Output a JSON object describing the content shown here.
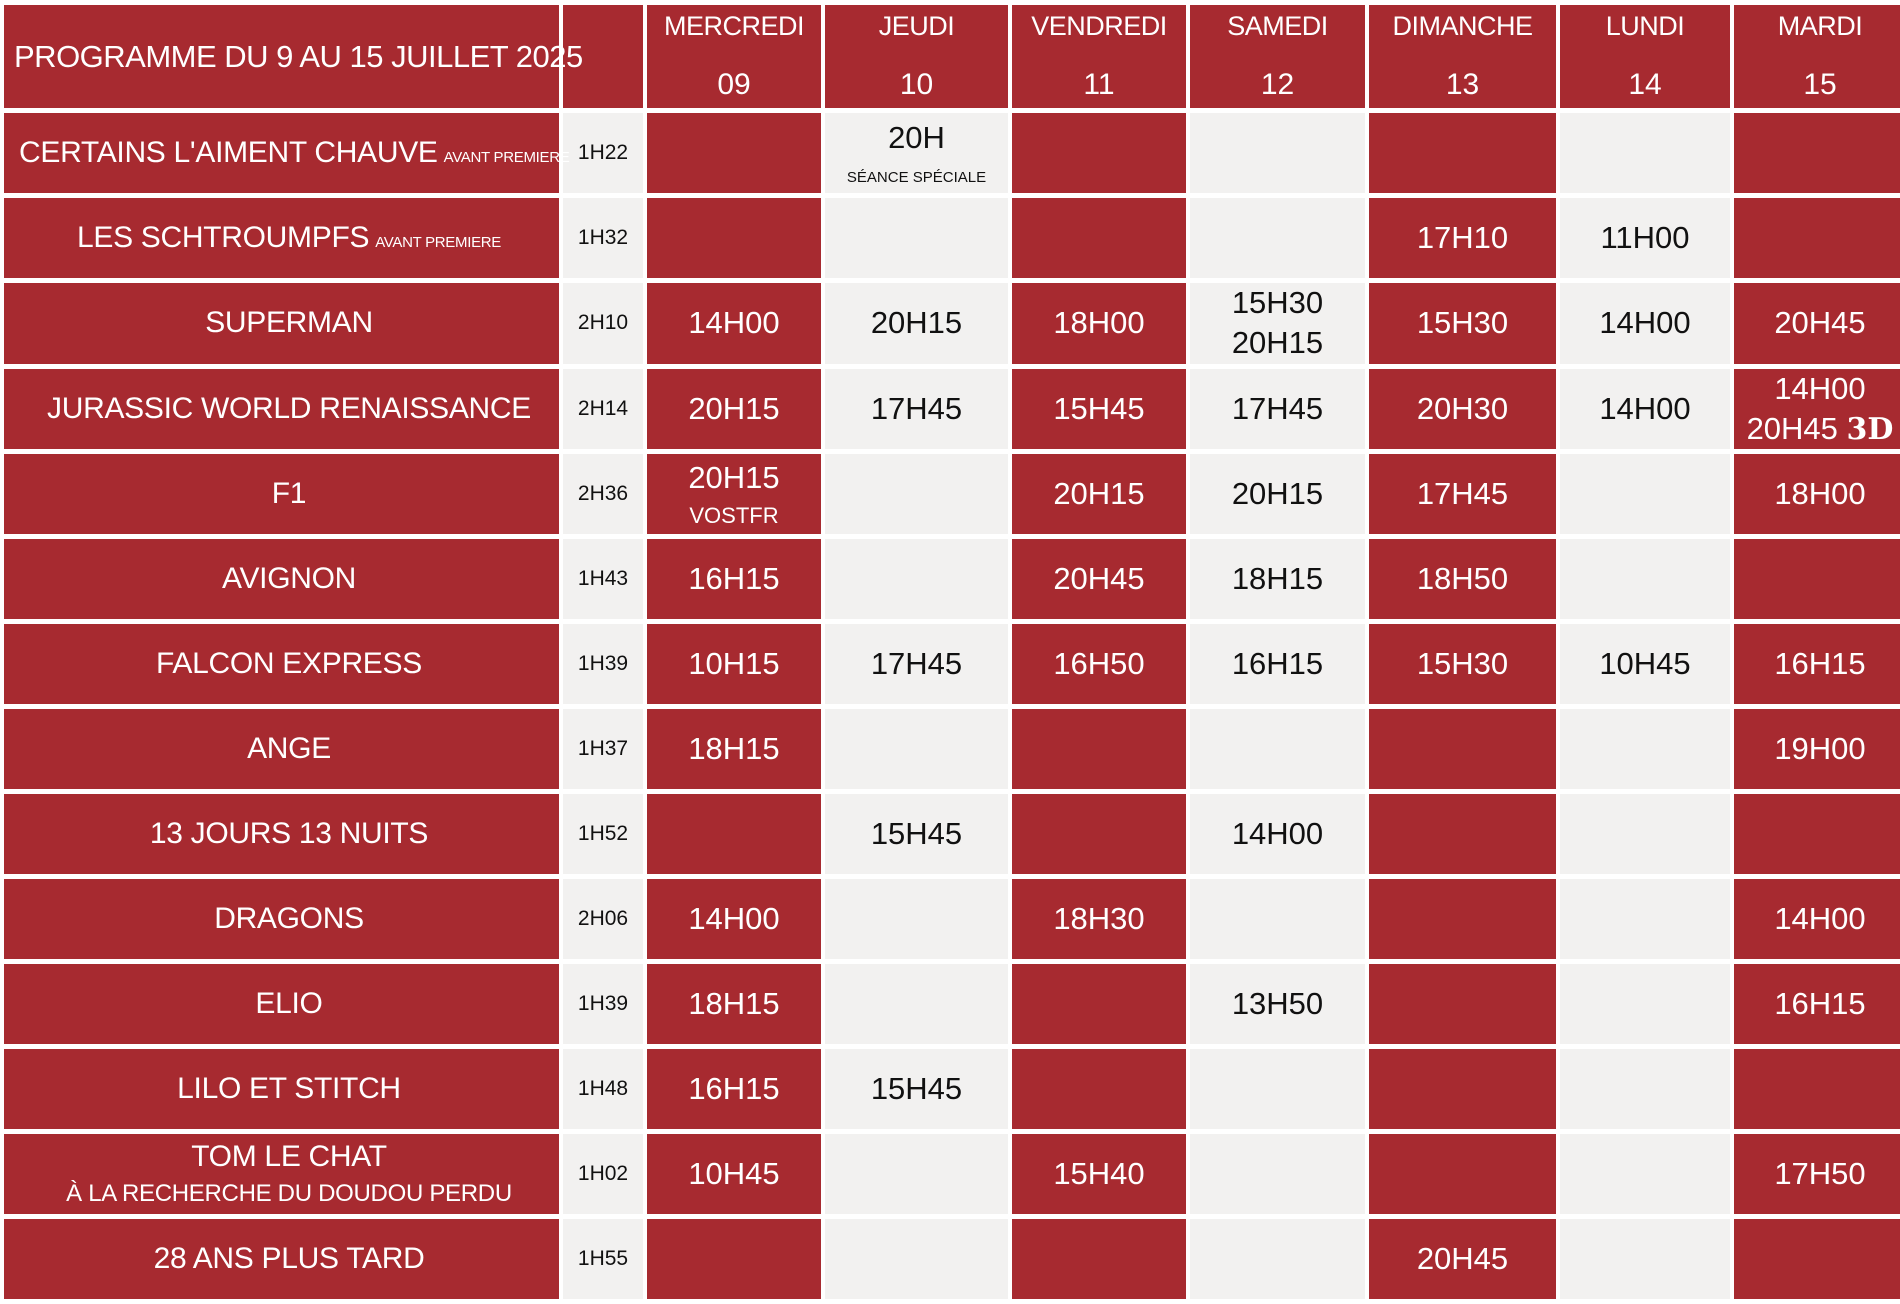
{
  "header": {
    "title": "PROGRAMME DU 9 AU 15 JUILLET 2025"
  },
  "days": [
    {
      "name": "MERCREDI",
      "num": "09"
    },
    {
      "name": "JEUDI",
      "num": "10"
    },
    {
      "name": "VENDREDI",
      "num": "11"
    },
    {
      "name": "SAMEDI",
      "num": "12"
    },
    {
      "name": "DIMANCHE",
      "num": "13"
    },
    {
      "name": "LUNDI",
      "num": "14"
    },
    {
      "name": "MARDI",
      "num": "15"
    }
  ],
  "colors": {
    "red": "#a72a30",
    "grey": "#f2f1f0",
    "background": "#ffffff"
  },
  "films": [
    {
      "title": "CERTAINS L'AIMENT CHAUVE",
      "tag": "AVANT PREMIERE",
      "duration": "1H22",
      "cells": [
        {
          "bg": "red"
        },
        {
          "bg": "grey",
          "times": [
            "20H"
          ],
          "note": "SÉANCE SPÉCIALE"
        },
        {
          "bg": "red"
        },
        {
          "bg": "grey"
        },
        {
          "bg": "red"
        },
        {
          "bg": "grey"
        },
        {
          "bg": "red"
        }
      ]
    },
    {
      "title": "LES SCHTROUMPFS",
      "tag": "AVANT PREMIERE",
      "duration": "1H32",
      "cells": [
        {
          "bg": "red"
        },
        {
          "bg": "grey"
        },
        {
          "bg": "red"
        },
        {
          "bg": "grey"
        },
        {
          "bg": "red",
          "times": [
            "17H10"
          ]
        },
        {
          "bg": "grey",
          "times": [
            "11H00"
          ]
        },
        {
          "bg": "red"
        }
      ]
    },
    {
      "title": "SUPERMAN",
      "duration": "2H10",
      "cells": [
        {
          "bg": "red",
          "times": [
            "14H00"
          ]
        },
        {
          "bg": "grey",
          "times": [
            "20H15"
          ]
        },
        {
          "bg": "red",
          "times": [
            "18H00"
          ]
        },
        {
          "bg": "grey",
          "times": [
            "15H30",
            "20H15"
          ]
        },
        {
          "bg": "red",
          "times": [
            "15H30"
          ]
        },
        {
          "bg": "grey",
          "times": [
            "14H00"
          ]
        },
        {
          "bg": "red",
          "times": [
            "20H45"
          ]
        }
      ]
    },
    {
      "title": "JURASSIC WORLD RENAISSANCE",
      "duration": "2H14",
      "cells": [
        {
          "bg": "red",
          "times": [
            "20H15"
          ]
        },
        {
          "bg": "grey",
          "times": [
            "17H45"
          ]
        },
        {
          "bg": "red",
          "times": [
            "15H45"
          ]
        },
        {
          "bg": "grey",
          "times": [
            "17H45"
          ]
        },
        {
          "bg": "red",
          "times": [
            "20H30"
          ]
        },
        {
          "bg": "grey",
          "times": [
            "14H00"
          ]
        },
        {
          "bg": "red",
          "times": [
            "14H00",
            "20H45"
          ],
          "extra": "3D"
        }
      ]
    },
    {
      "title": "F1",
      "duration": "2H36",
      "cells": [
        {
          "bg": "red",
          "times": [
            "20H15"
          ],
          "note": "VOSTFR",
          "note_big": true
        },
        {
          "bg": "grey"
        },
        {
          "bg": "red",
          "times": [
            "20H15"
          ]
        },
        {
          "bg": "grey",
          "times": [
            "20H15"
          ]
        },
        {
          "bg": "red",
          "times": [
            "17H45"
          ]
        },
        {
          "bg": "grey"
        },
        {
          "bg": "red",
          "times": [
            "18H00"
          ]
        }
      ]
    },
    {
      "title": "AVIGNON",
      "duration": "1H43",
      "cells": [
        {
          "bg": "red",
          "times": [
            "16H15"
          ]
        },
        {
          "bg": "grey"
        },
        {
          "bg": "red",
          "times": [
            "20H45"
          ]
        },
        {
          "bg": "grey",
          "times": [
            "18H15"
          ]
        },
        {
          "bg": "red",
          "times": [
            "18H50"
          ]
        },
        {
          "bg": "grey"
        },
        {
          "bg": "red"
        }
      ]
    },
    {
      "title": "FALCON EXPRESS",
      "duration": "1H39",
      "cells": [
        {
          "bg": "red",
          "times": [
            "10H15"
          ]
        },
        {
          "bg": "grey",
          "times": [
            "17H45"
          ]
        },
        {
          "bg": "red",
          "times": [
            "16H50"
          ]
        },
        {
          "bg": "grey",
          "times": [
            "16H15"
          ]
        },
        {
          "bg": "red",
          "times": [
            "15H30"
          ]
        },
        {
          "bg": "grey",
          "times": [
            "10H45"
          ]
        },
        {
          "bg": "red",
          "times": [
            "16H15"
          ]
        }
      ]
    },
    {
      "title": "ANGE",
      "duration": "1H37",
      "cells": [
        {
          "bg": "red",
          "times": [
            "18H15"
          ]
        },
        {
          "bg": "grey"
        },
        {
          "bg": "red"
        },
        {
          "bg": "grey"
        },
        {
          "bg": "red"
        },
        {
          "bg": "grey"
        },
        {
          "bg": "red",
          "times": [
            "19H00"
          ]
        }
      ]
    },
    {
      "title": "13 JOURS 13 NUITS",
      "duration": "1H52",
      "cells": [
        {
          "bg": "red"
        },
        {
          "bg": "grey",
          "times": [
            "15H45"
          ]
        },
        {
          "bg": "red"
        },
        {
          "bg": "grey",
          "times": [
            "14H00"
          ]
        },
        {
          "bg": "red"
        },
        {
          "bg": "grey"
        },
        {
          "bg": "red"
        }
      ]
    },
    {
      "title": "DRAGONS",
      "duration": "2H06",
      "cells": [
        {
          "bg": "red",
          "times": [
            "14H00"
          ]
        },
        {
          "bg": "grey"
        },
        {
          "bg": "red",
          "times": [
            "18H30"
          ]
        },
        {
          "bg": "grey"
        },
        {
          "bg": "red"
        },
        {
          "bg": "grey"
        },
        {
          "bg": "red",
          "times": [
            "14H00"
          ]
        }
      ]
    },
    {
      "title": "ELIO",
      "duration": "1H39",
      "cells": [
        {
          "bg": "red",
          "times": [
            "18H15"
          ]
        },
        {
          "bg": "grey"
        },
        {
          "bg": "red"
        },
        {
          "bg": "grey",
          "times": [
            "13H50"
          ]
        },
        {
          "bg": "red"
        },
        {
          "bg": "grey"
        },
        {
          "bg": "red",
          "times": [
            "16H15"
          ]
        }
      ]
    },
    {
      "title": "LILO ET STITCH",
      "duration": "1H48",
      "cells": [
        {
          "bg": "red",
          "times": [
            "16H15"
          ]
        },
        {
          "bg": "grey",
          "times": [
            "15H45"
          ]
        },
        {
          "bg": "red"
        },
        {
          "bg": "grey"
        },
        {
          "bg": "red"
        },
        {
          "bg": "grey"
        },
        {
          "bg": "red"
        }
      ]
    },
    {
      "title": "TOM LE CHAT",
      "subtitle": "À LA RECHERCHE DU DOUDOU PERDU",
      "duration": "1H02",
      "cells": [
        {
          "bg": "red",
          "times": [
            "10H45"
          ]
        },
        {
          "bg": "grey"
        },
        {
          "bg": "red",
          "times": [
            "15H40"
          ]
        },
        {
          "bg": "grey"
        },
        {
          "bg": "red"
        },
        {
          "bg": "grey"
        },
        {
          "bg": "red",
          "times": [
            "17H50"
          ]
        }
      ]
    },
    {
      "title": "28 ANS PLUS TARD",
      "duration": "1H55",
      "cells": [
        {
          "bg": "red"
        },
        {
          "bg": "grey"
        },
        {
          "bg": "red"
        },
        {
          "bg": "grey"
        },
        {
          "bg": "red",
          "times": [
            "20H45"
          ]
        },
        {
          "bg": "grey"
        },
        {
          "bg": "red"
        }
      ]
    }
  ]
}
